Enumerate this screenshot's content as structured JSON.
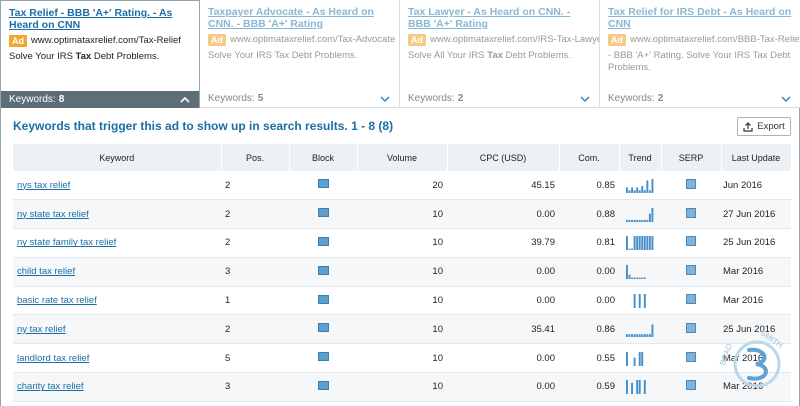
{
  "ads": [
    {
      "title": "Tax Relief - BBB 'A+' Rating. - As Heard on CNN",
      "badge": "Ad",
      "url": "www.optimataxrelief.com/Tax-Relief",
      "desc_pre": "Solve Your IRS ",
      "desc_bold": "Tax",
      "desc_post": " Debt Problems.",
      "keywords_label": "Keywords:",
      "keywords_count": "8",
      "active": true
    },
    {
      "title": "Taxpayer Advocate - As Heard on CNN. - BBB 'A+' Rating",
      "badge": "Ad",
      "url": "www.optimataxrelief.com/Tax-Advocate",
      "desc_pre": "Solve Your IRS Tax Debt Problems.",
      "desc_bold": "",
      "desc_post": "",
      "keywords_label": "Keywords:",
      "keywords_count": "5",
      "active": false
    },
    {
      "title": "Tax Lawyer - As Heard on CNN. - BBB 'A+' Rating",
      "badge": "Ad",
      "url": "www.optimataxrelief.com/IRS-Tax-Lawyer",
      "desc_pre": "Solve All Your IRS ",
      "desc_bold": "Tax",
      "desc_post": " Debt Problems.",
      "keywords_label": "Keywords:",
      "keywords_count": "2",
      "active": false
    },
    {
      "title": "Tax Relief for IRS Debt - As Heard on CNN",
      "badge": "Ad",
      "url": "www.optimataxrelief.com/BBB-Tax-Relief",
      "desc_pre": "- BBB 'A+' Rating. Solve Your IRS Tax Debt Problems.",
      "desc_bold": "",
      "desc_post": "",
      "keywords_label": "Keywords:",
      "keywords_count": "2",
      "active": false
    }
  ],
  "panel": {
    "heading": "Keywords that trigger this ad to show up in search results.",
    "range": "1 - 8 (8)",
    "export_label": "Export"
  },
  "columns": [
    "Keyword",
    "Pos.",
    "Block",
    "Volume",
    "CPC (USD)",
    "Com.",
    "Trend",
    "SERP",
    "Last Update"
  ],
  "rows": [
    {
      "keyword": "nys tax relief",
      "pos": "2",
      "volume": "20",
      "cpc": "45.15",
      "com": "0.85",
      "last_update": "Jun 2016",
      "trend": [
        0.4,
        0.2,
        0.4,
        0.2,
        0.4,
        0.2,
        0.5,
        0.2,
        0.9,
        0.2,
        1
      ]
    },
    {
      "keyword": "ny state tax relief",
      "pos": "2",
      "volume": "10",
      "cpc": "0.00",
      "com": "0.88",
      "last_update": "27 Jun 2016",
      "trend": [
        0.15,
        0.15,
        0.15,
        0.15,
        0.15,
        0.15,
        0.15,
        0.15,
        0.15,
        0.6,
        1
      ]
    },
    {
      "keyword": "ny state family tax relief",
      "pos": "2",
      "volume": "10",
      "cpc": "39.79",
      "com": "0.81",
      "last_update": "25 Jun 2016",
      "trend": [
        1,
        0.1,
        0.1,
        1,
        1,
        1,
        1,
        1,
        1,
        1,
        1
      ]
    },
    {
      "keyword": "child tax relief",
      "pos": "3",
      "volume": "10",
      "cpc": "0.00",
      "com": "0.00",
      "last_update": "Mar 2016",
      "trend": [
        1,
        0.3,
        0.1,
        0.1,
        0.1,
        0.1,
        0.1,
        0.1,
        0,
        0,
        0
      ]
    },
    {
      "keyword": "basic rate tax relief",
      "pos": "1",
      "volume": "10",
      "cpc": "0.00",
      "com": "0.00",
      "last_update": "Mar 2016",
      "trend": [
        0,
        0,
        0,
        1,
        0,
        1,
        0,
        1,
        0,
        0,
        0
      ]
    },
    {
      "keyword": "ny tax relief",
      "pos": "2",
      "volume": "10",
      "cpc": "35.41",
      "com": "0.86",
      "last_update": "25 Jun 2016",
      "trend": [
        0.2,
        0.2,
        0.2,
        0.2,
        0.2,
        0.2,
        0.2,
        0.2,
        0.2,
        0.2,
        0.9
      ]
    },
    {
      "keyword": "landlord tax relief",
      "pos": "5",
      "volume": "10",
      "cpc": "0.00",
      "com": "0.55",
      "last_update": "Mar 2016",
      "trend": [
        1,
        0,
        0,
        0.6,
        0,
        1,
        1,
        0,
        0,
        0,
        0
      ]
    },
    {
      "keyword": "charity tax relief",
      "pos": "3",
      "volume": "10",
      "cpc": "0.00",
      "com": "0.59",
      "last_update": "Mar 2016",
      "trend": [
        1,
        0,
        0.8,
        0,
        1,
        1,
        0,
        1,
        0,
        0,
        0
      ]
    }
  ],
  "icons": {
    "export": "export-icon",
    "block": "block-icon",
    "serp": "serp-icon",
    "chevron": "chevron-icon"
  },
  "colors": {
    "link": "#1a6fa6",
    "ad_badge": "#f0a832",
    "active_footer": "#5e6e79",
    "trend": "#4a90c8"
  }
}
